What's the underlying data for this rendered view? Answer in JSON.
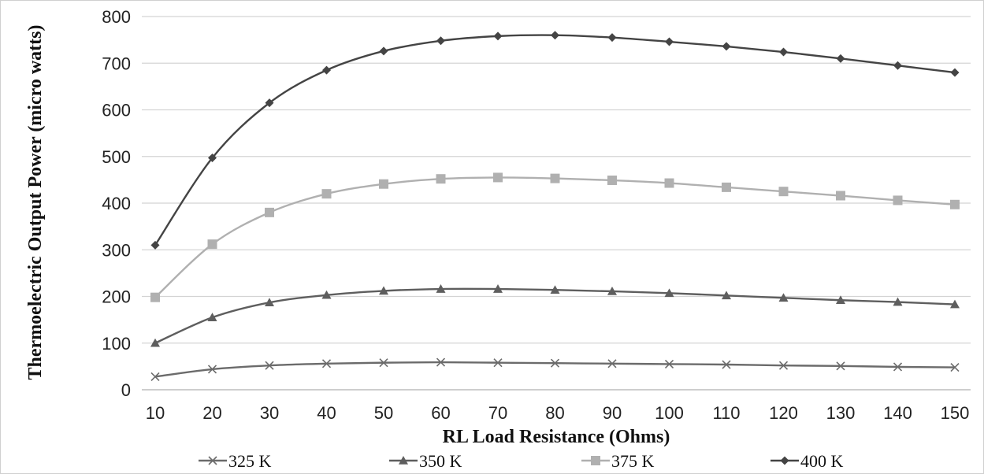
{
  "chart_data": {
    "type": "line",
    "xlabel": "RL Load Resistance (Ohms)",
    "ylabel": "Thermoelectric Output Power (micro watts)",
    "ylim": [
      0,
      800
    ],
    "yticks": [
      0,
      100,
      200,
      300,
      400,
      500,
      600,
      700,
      800
    ],
    "x": [
      10,
      20,
      30,
      40,
      50,
      60,
      70,
      80,
      90,
      100,
      110,
      120,
      130,
      140,
      150
    ],
    "grid": "horizontal",
    "legend_position": "bottom",
    "series": [
      {
        "name": "325 K",
        "marker": "x",
        "color": "#6b6b6b",
        "values": [
          28,
          44,
          52,
          56,
          58,
          59,
          58,
          57,
          56,
          55,
          54,
          52,
          51,
          49,
          48
        ]
      },
      {
        "name": "350 K",
        "marker": "triangle",
        "color": "#5e5e5e",
        "values": [
          100,
          155,
          187,
          203,
          212,
          216,
          216,
          214,
          211,
          207,
          202,
          197,
          192,
          188,
          183
        ]
      },
      {
        "name": "375 K",
        "marker": "square",
        "color": "#b0b0b0",
        "values": [
          198,
          312,
          380,
          420,
          441,
          452,
          455,
          453,
          449,
          443,
          434,
          425,
          416,
          406,
          397
        ]
      },
      {
        "name": "400 K",
        "marker": "diamond",
        "color": "#444444",
        "values": [
          310,
          497,
          615,
          685,
          726,
          748,
          758,
          760,
          755,
          746,
          736,
          724,
          710,
          695,
          680
        ]
      }
    ]
  }
}
